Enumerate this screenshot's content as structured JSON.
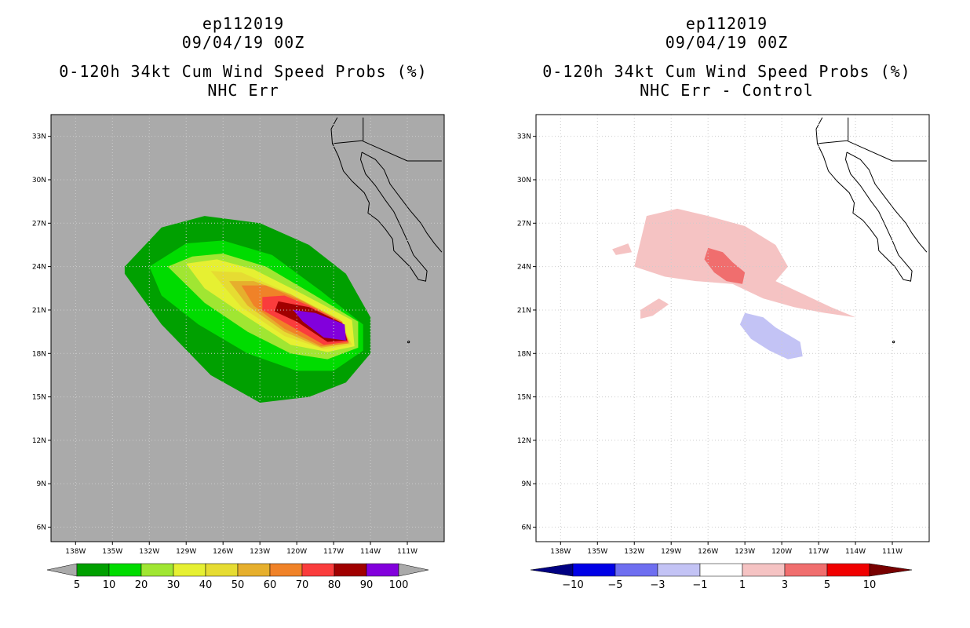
{
  "chart_data": [
    {
      "type": "contour_map",
      "storm_id": "ep112019",
      "datetime": "09/04/19 00Z",
      "title": "0-120h 34kt Cum Wind Speed Probs (%)",
      "subtitle": "NHC Err",
      "lat_ticks": [
        "33N",
        "30N",
        "27N",
        "24N",
        "21N",
        "18N",
        "15N",
        "12N",
        "9N",
        "6N"
      ],
      "lon_ticks": [
        "138W",
        "135W",
        "132W",
        "129W",
        "126W",
        "123W",
        "120W",
        "117W",
        "114W",
        "111W"
      ],
      "lat_range": [
        5,
        34.5
      ],
      "lon_range": [
        -140,
        -108
      ],
      "background": "#aaaaaa",
      "colorbar": {
        "labels": [
          "5",
          "10",
          "20",
          "30",
          "40",
          "50",
          "60",
          "70",
          "80",
          "90",
          "100"
        ],
        "colors": [
          "#00a000",
          "#00dc00",
          "#a0e632",
          "#e6f032",
          "#e6dc32",
          "#e6af2d",
          "#f08228",
          "#fa3c3c",
          "#a00000",
          "#8200dc"
        ],
        "end_color": "#aaaaaa"
      },
      "contours": [
        {
          "level": 5,
          "color": "#00a000",
          "points": [
            [
              -134,
              24
            ],
            [
              -131,
              26.7
            ],
            [
              -127.5,
              27.5
            ],
            [
              -123,
              27
            ],
            [
              -119,
              25.5
            ],
            [
              -116,
              23.5
            ],
            [
              -114,
              20.5
            ],
            [
              -114,
              18
            ],
            [
              -116,
              16
            ],
            [
              -119,
              15
            ],
            [
              -123,
              14.6
            ],
            [
              -127,
              16.5
            ],
            [
              -131,
              20
            ],
            [
              -134,
              23.5
            ]
          ]
        },
        {
          "level": 10,
          "color": "#00dc00",
          "points": [
            [
              -132,
              24
            ],
            [
              -129,
              25.6
            ],
            [
              -126,
              25.8
            ],
            [
              -122,
              24.8
            ],
            [
              -118,
              22.3
            ],
            [
              -114.6,
              20
            ],
            [
              -114.6,
              18.2
            ],
            [
              -117,
              16.8
            ],
            [
              -120,
              16.8
            ],
            [
              -124,
              18
            ],
            [
              -128,
              20
            ],
            [
              -131,
              22
            ]
          ]
        },
        {
          "level": 20,
          "color": "#a0e632",
          "points": [
            [
              -130.5,
              24
            ],
            [
              -128.5,
              24.7
            ],
            [
              -126,
              24.9
            ],
            [
              -122.5,
              24
            ],
            [
              -118.5,
              22
            ],
            [
              -115,
              20.2
            ],
            [
              -115,
              18.4
            ],
            [
              -117.5,
              17.6
            ],
            [
              -120.5,
              18
            ],
            [
              -124,
              19.5
            ],
            [
              -127.5,
              21.5
            ]
          ]
        },
        {
          "level": 30,
          "color": "#e6f032",
          "points": [
            [
              -129,
              24.2
            ],
            [
              -126.5,
              24.5
            ],
            [
              -123.5,
              23.8
            ],
            [
              -119.5,
              22.1
            ],
            [
              -115.5,
              20.3
            ],
            [
              -115.3,
              18.5
            ],
            [
              -117.5,
              18.1
            ],
            [
              -120.5,
              18.6
            ],
            [
              -124,
              20.5
            ],
            [
              -127.5,
              22.5
            ]
          ]
        },
        {
          "level": 40,
          "color": "#e6dc32",
          "points": [
            [
              -127,
              23.7
            ],
            [
              -124.5,
              23.6
            ],
            [
              -121,
              22.3
            ],
            [
              -116.5,
              20.4
            ],
            [
              -115.5,
              18.6
            ],
            [
              -117.8,
              18.3
            ],
            [
              -121,
              19.2
            ],
            [
              -124.5,
              21.2
            ]
          ]
        },
        {
          "level": 50,
          "color": "#e6af2d",
          "points": [
            [
              -125.5,
              23
            ],
            [
              -123.5,
              23
            ],
            [
              -120.5,
              22.1
            ],
            [
              -116.5,
              20.3
            ],
            [
              -115.7,
              18.7
            ],
            [
              -118,
              18.4
            ],
            [
              -121,
              19.5
            ],
            [
              -124,
              21.3
            ]
          ]
        },
        {
          "level": 60,
          "color": "#f08228",
          "points": [
            [
              -124.5,
              22.7
            ],
            [
              -122.5,
              22.7
            ],
            [
              -119.5,
              21.6
            ],
            [
              -116.3,
              20.2
            ],
            [
              -115.8,
              18.7
            ],
            [
              -118,
              18.5
            ],
            [
              -121,
              19.7
            ],
            [
              -123.5,
              21.3
            ]
          ]
        },
        {
          "level": 70,
          "color": "#fa3c3c",
          "points": [
            [
              -122.8,
              21.9
            ],
            [
              -121,
              22
            ],
            [
              -119,
              21.3
            ],
            [
              -116.3,
              20.1
            ],
            [
              -115.8,
              18.8
            ],
            [
              -117.8,
              18.6
            ],
            [
              -120.5,
              19.9
            ],
            [
              -122.8,
              21
            ]
          ]
        },
        {
          "level": 80,
          "color": "#a00000",
          "points": [
            [
              -121.5,
              21.6
            ],
            [
              -119,
              21.2
            ],
            [
              -116.3,
              20.1
            ],
            [
              -115.9,
              18.9
            ],
            [
              -117.5,
              18.8
            ],
            [
              -120,
              20.2
            ],
            [
              -121.8,
              20.9
            ]
          ]
        },
        {
          "level": 90,
          "color": "#8200dc",
          "points": [
            [
              -120.3,
              21
            ],
            [
              -118.5,
              20.8
            ],
            [
              -116.1,
              20
            ],
            [
              -116,
              18.9
            ],
            [
              -117.8,
              19.1
            ],
            [
              -119.5,
              20.2
            ]
          ]
        }
      ]
    },
    {
      "type": "contour_map",
      "storm_id": "ep112019",
      "datetime": "09/04/19 00Z",
      "title": "0-120h 34kt Cum Wind Speed Probs (%)",
      "subtitle": "NHC Err - Control",
      "lat_ticks": [
        "33N",
        "30N",
        "27N",
        "24N",
        "21N",
        "18N",
        "15N",
        "12N",
        "9N",
        "6N"
      ],
      "lon_ticks": [
        "138W",
        "135W",
        "132W",
        "129W",
        "126W",
        "123W",
        "120W",
        "117W",
        "114W",
        "111W"
      ],
      "lat_range": [
        5,
        34.5
      ],
      "lon_range": [
        -140,
        -108
      ],
      "background": "#ffffff",
      "colorbar": {
        "labels": [
          "-10",
          "-5",
          "-3",
          "-1",
          "1",
          "3",
          "5",
          "10"
        ],
        "colors": [
          "#0000e6",
          "#6e6ef0",
          "#c3c3f5",
          "#ffffff",
          "#f5c3c3",
          "#f06e6e",
          "#f00000"
        ],
        "end_low": "#000082",
        "end_high": "#780000"
      },
      "contours": [
        {
          "level": 1,
          "color": "#f5c3c3",
          "points": [
            [
              -131,
              27.5
            ],
            [
              -128.5,
              28
            ],
            [
              -126,
              27.5
            ],
            [
              -123,
              26.8
            ],
            [
              -120.5,
              25.5
            ],
            [
              -119.5,
              24
            ],
            [
              -120.5,
              23
            ],
            [
              -118,
              22
            ],
            [
              -116,
              21.2
            ],
            [
              -114,
              20.5
            ],
            [
              -116.5,
              20.8
            ],
            [
              -119,
              21.2
            ],
            [
              -121.5,
              21.8
            ],
            [
              -124,
              22.8
            ],
            [
              -127,
              23
            ],
            [
              -129.5,
              23.3
            ],
            [
              -132,
              24
            ]
          ]
        },
        {
          "level": 1,
          "color": "#f5c3c3",
          "points": [
            [
              -133.8,
              25.2
            ],
            [
              -132.5,
              25.6
            ],
            [
              -132.2,
              25
            ],
            [
              -133.5,
              24.8
            ]
          ]
        },
        {
          "level": 1,
          "color": "#f5c3c3",
          "points": [
            [
              -131.5,
              21
            ],
            [
              -130,
              21.8
            ],
            [
              -129.2,
              21.4
            ],
            [
              -130.5,
              20.6
            ],
            [
              -131.5,
              20.4
            ]
          ]
        },
        {
          "level": 3,
          "color": "#f06e6e",
          "points": [
            [
              -126,
              25.3
            ],
            [
              -124.8,
              25
            ],
            [
              -124,
              24.3
            ],
            [
              -123,
              23.6
            ],
            [
              -123.2,
              22.8
            ],
            [
              -124.5,
              23
            ],
            [
              -125.5,
              23.6
            ],
            [
              -126.3,
              24.5
            ]
          ]
        },
        {
          "level": -1,
          "color": "#c3c3f5",
          "points": [
            [
              -123,
              20.8
            ],
            [
              -121.5,
              20.5
            ],
            [
              -120.5,
              19.8
            ],
            [
              -119.5,
              19.3
            ],
            [
              -118.5,
              18.8
            ],
            [
              -118.3,
              17.8
            ],
            [
              -119.5,
              17.6
            ],
            [
              -121,
              18.2
            ],
            [
              -122.5,
              19
            ],
            [
              -123.4,
              20
            ]
          ]
        }
      ]
    }
  ]
}
